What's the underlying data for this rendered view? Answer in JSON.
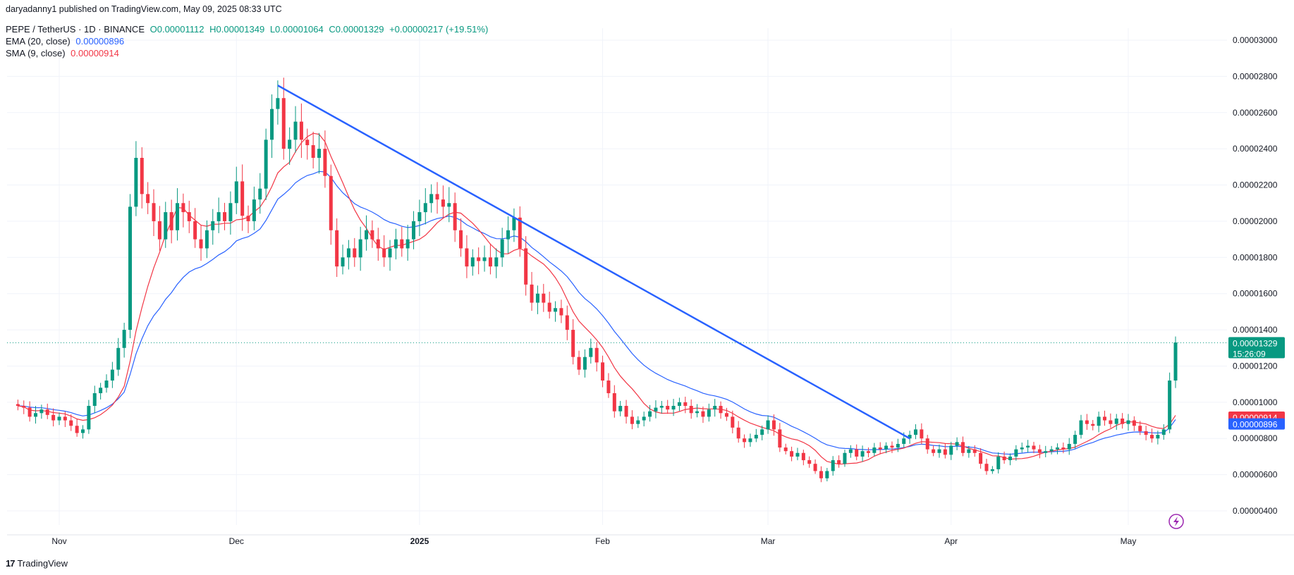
{
  "header": {
    "published": "daryadanny1 published on TradingView.com, May 09, 2025 08:33 UTC",
    "symbol": "PEPE / TetherUS · 1D · BINANCE",
    "open": "O0.00001112",
    "high": "H0.00001349",
    "low": "L0.00001064",
    "close": "C0.00001329",
    "change": "+0.00000217 (+19.51%)",
    "ema_label": "EMA (20, close)",
    "ema_value": "0.00000896",
    "sma_label": "SMA (9, close)",
    "sma_value": "0.00000914"
  },
  "footer": {
    "logo_text": "TradingView"
  },
  "price_badge": {
    "value": "0.00001329",
    "countdown": "15:26:09",
    "color": "#089981"
  },
  "sma_badge": {
    "value": "0.00000914",
    "color": "#f23645"
  },
  "ema_badge": {
    "value": "0.00000896",
    "color": "#2962ff"
  },
  "colors": {
    "up": "#089981",
    "down": "#f23645",
    "ema": "#2962ff",
    "sma": "#f23645",
    "trendline": "#2962ff",
    "grid": "#f0f3fa"
  },
  "chart_data": {
    "type": "candlestick",
    "y_axis_ticks": [
      "0.00000400",
      "0.00000600",
      "0.00000800",
      "0.00001000",
      "0.00001200",
      "0.00001400",
      "0.00001600",
      "0.00001800",
      "0.00002000",
      "0.00002200",
      "0.00002400",
      "0.00002600",
      "0.00002800",
      "0.00003000"
    ],
    "x_axis_ticks": [
      "Nov",
      "Dec",
      "2025",
      "Feb",
      "Mar",
      "Apr",
      "May"
    ],
    "ylim": [
      3.3e-06,
      3.1e-06
    ],
    "grid": true,
    "trendline": {
      "from": {
        "date": "2024-12-08",
        "price": 2.75e-05
      },
      "to": {
        "date": "2025-03-25",
        "price": 8e-06
      }
    },
    "last_price": 1.329e-05,
    "closes_approx": [
      [
        "2024-10-25",
        9.8e-06
      ],
      [
        "2024-10-26",
        9.7e-06
      ],
      [
        "2024-10-27",
        9.2e-06
      ],
      [
        "2024-10-28",
        9.4e-06
      ],
      [
        "2024-10-29",
        9.6e-06
      ],
      [
        "2024-10-30",
        9.3e-06
      ],
      [
        "2024-10-31",
        9e-06
      ],
      [
        "2024-11-01",
        9.2e-06
      ],
      [
        "2024-11-02",
        9e-06
      ],
      [
        "2024-11-03",
        8.7e-06
      ],
      [
        "2024-11-04",
        8.3e-06
      ],
      [
        "2024-11-05",
        8.5e-06
      ],
      [
        "2024-11-06",
        9.8e-06
      ],
      [
        "2024-11-07",
        1.05e-05
      ],
      [
        "2024-11-08",
        1.08e-05
      ],
      [
        "2024-11-09",
        1.12e-05
      ],
      [
        "2024-11-10",
        1.18e-05
      ],
      [
        "2024-11-11",
        1.3e-05
      ],
      [
        "2024-11-12",
        1.4e-05
      ],
      [
        "2024-11-13",
        2.08e-05
      ],
      [
        "2024-11-14",
        2.35e-05
      ],
      [
        "2024-11-15",
        2.15e-05
      ],
      [
        "2024-11-16",
        2.1e-05
      ],
      [
        "2024-11-17",
        2e-05
      ],
      [
        "2024-11-18",
        1.9e-05
      ],
      [
        "2024-11-19",
        2.05e-05
      ],
      [
        "2024-11-20",
        1.95e-05
      ],
      [
        "2024-11-21",
        2.1e-05
      ],
      [
        "2024-11-22",
        2.05e-05
      ],
      [
        "2024-11-23",
        2e-05
      ],
      [
        "2024-11-24",
        1.9e-05
      ],
      [
        "2024-11-25",
        1.85e-05
      ],
      [
        "2024-11-26",
        1.95e-05
      ],
      [
        "2024-11-27",
        2e-05
      ],
      [
        "2024-11-28",
        2.05e-05
      ],
      [
        "2024-11-29",
        2e-05
      ],
      [
        "2024-11-30",
        2.1e-05
      ],
      [
        "2024-12-01",
        2.22e-05
      ],
      [
        "2024-12-02",
        2.03e-05
      ],
      [
        "2024-12-03",
        2e-05
      ],
      [
        "2024-12-04",
        2.12e-05
      ],
      [
        "2024-12-05",
        2.18e-05
      ],
      [
        "2024-12-06",
        2.45e-05
      ],
      [
        "2024-12-07",
        2.62e-05
      ],
      [
        "2024-12-08",
        2.68e-05
      ],
      [
        "2024-12-09",
        2.4e-05
      ],
      [
        "2024-12-10",
        2.45e-05
      ],
      [
        "2024-12-11",
        2.55e-05
      ],
      [
        "2024-12-12",
        2.45e-05
      ],
      [
        "2024-12-13",
        2.42e-05
      ],
      [
        "2024-12-14",
        2.35e-05
      ],
      [
        "2024-12-15",
        2.4e-05
      ],
      [
        "2024-12-16",
        2.25e-05
      ],
      [
        "2024-12-17",
        1.95e-05
      ],
      [
        "2024-12-18",
        1.75e-05
      ],
      [
        "2024-12-19",
        1.8e-05
      ],
      [
        "2024-12-20",
        1.85e-05
      ],
      [
        "2024-12-21",
        1.8e-05
      ],
      [
        "2024-12-22",
        1.9e-05
      ],
      [
        "2024-12-23",
        1.95e-05
      ],
      [
        "2024-12-24",
        1.9e-05
      ],
      [
        "2024-12-25",
        1.85e-05
      ],
      [
        "2024-12-26",
        1.8e-05
      ],
      [
        "2024-12-27",
        1.85e-05
      ],
      [
        "2024-12-28",
        1.9e-05
      ],
      [
        "2024-12-29",
        1.85e-05
      ],
      [
        "2024-12-30",
        1.9e-05
      ],
      [
        "2024-12-31",
        2e-05
      ],
      [
        "2025-01-01",
        2.05e-05
      ],
      [
        "2025-01-02",
        2.1e-05
      ],
      [
        "2025-01-03",
        2.15e-05
      ],
      [
        "2025-01-04",
        2.12e-05
      ],
      [
        "2025-01-05",
        2.08e-05
      ],
      [
        "2025-01-06",
        2.1e-05
      ],
      [
        "2025-01-07",
        1.95e-05
      ],
      [
        "2025-01-08",
        1.85e-05
      ],
      [
        "2025-01-09",
        1.75e-05
      ],
      [
        "2025-01-10",
        1.8e-05
      ],
      [
        "2025-01-11",
        1.78e-05
      ],
      [
        "2025-01-12",
        1.8e-05
      ],
      [
        "2025-01-13",
        1.75e-05
      ],
      [
        "2025-01-14",
        1.8e-05
      ],
      [
        "2025-01-15",
        1.9e-05
      ],
      [
        "2025-01-16",
        1.95e-05
      ],
      [
        "2025-01-17",
        2.02e-05
      ],
      [
        "2025-01-18",
        1.85e-05
      ],
      [
        "2025-01-19",
        1.65e-05
      ],
      [
        "2025-01-20",
        1.55e-05
      ],
      [
        "2025-01-21",
        1.6e-05
      ],
      [
        "2025-01-22",
        1.55e-05
      ],
      [
        "2025-01-23",
        1.5e-05
      ],
      [
        "2025-01-24",
        1.52e-05
      ],
      [
        "2025-01-25",
        1.48e-05
      ],
      [
        "2025-01-26",
        1.4e-05
      ],
      [
        "2025-01-27",
        1.25e-05
      ],
      [
        "2025-01-28",
        1.18e-05
      ],
      [
        "2025-01-29",
        1.25e-05
      ],
      [
        "2025-01-30",
        1.3e-05
      ],
      [
        "2025-01-31",
        1.22e-05
      ],
      [
        "2025-02-01",
        1.12e-05
      ],
      [
        "2025-02-02",
        1.05e-05
      ],
      [
        "2025-02-03",
        9.5e-06
      ],
      [
        "2025-02-04",
        9.8e-06
      ],
      [
        "2025-02-05",
        9.2e-06
      ],
      [
        "2025-02-06",
        8.8e-06
      ],
      [
        "2025-02-07",
        9e-06
      ],
      [
        "2025-02-08",
        9.2e-06
      ],
      [
        "2025-02-09",
        9.5e-06
      ],
      [
        "2025-02-10",
        9.7e-06
      ],
      [
        "2025-02-11",
        9.8e-06
      ],
      [
        "2025-02-12",
        9.6e-06
      ],
      [
        "2025-02-13",
        9.8e-06
      ],
      [
        "2025-02-14",
        1e-05
      ],
      [
        "2025-02-15",
        9.8e-06
      ],
      [
        "2025-02-16",
        9.4e-06
      ],
      [
        "2025-02-17",
        9.5e-06
      ],
      [
        "2025-02-18",
        9.2e-06
      ],
      [
        "2025-02-19",
        9.6e-06
      ],
      [
        "2025-02-20",
        9.8e-06
      ],
      [
        "2025-02-21",
        9.4e-06
      ],
      [
        "2025-02-22",
        9.2e-06
      ],
      [
        "2025-02-23",
        8.6e-06
      ],
      [
        "2025-02-24",
        8e-06
      ],
      [
        "2025-02-25",
        7.8e-06
      ],
      [
        "2025-02-26",
        8e-06
      ],
      [
        "2025-02-27",
        8.2e-06
      ],
      [
        "2025-02-28",
        8.5e-06
      ],
      [
        "2025-03-01",
        9e-06
      ],
      [
        "2025-03-02",
        8.5e-06
      ],
      [
        "2025-03-03",
        7.5e-06
      ],
      [
        "2025-03-04",
        7.3e-06
      ],
      [
        "2025-03-05",
        7e-06
      ],
      [
        "2025-03-06",
        7.2e-06
      ],
      [
        "2025-03-07",
        6.8e-06
      ],
      [
        "2025-03-08",
        6.6e-06
      ],
      [
        "2025-03-09",
        6.2e-06
      ],
      [
        "2025-03-10",
        5.8e-06
      ],
      [
        "2025-03-11",
        6.2e-06
      ],
      [
        "2025-03-12",
        6.8e-06
      ],
      [
        "2025-03-13",
        6.6e-06
      ],
      [
        "2025-03-14",
        7.2e-06
      ],
      [
        "2025-03-15",
        7.4e-06
      ],
      [
        "2025-03-16",
        7e-06
      ],
      [
        "2025-03-17",
        7.3e-06
      ],
      [
        "2025-03-18",
        7.2e-06
      ],
      [
        "2025-03-19",
        7.5e-06
      ],
      [
        "2025-03-20",
        7.4e-06
      ],
      [
        "2025-03-21",
        7.6e-06
      ],
      [
        "2025-03-22",
        7.5e-06
      ],
      [
        "2025-03-23",
        7.7e-06
      ],
      [
        "2025-03-24",
        8e-06
      ],
      [
        "2025-03-25",
        8.2e-06
      ],
      [
        "2025-03-26",
        8.5e-06
      ],
      [
        "2025-03-27",
        8e-06
      ],
      [
        "2025-03-28",
        7.4e-06
      ],
      [
        "2025-03-29",
        7.2e-06
      ],
      [
        "2025-03-30",
        7.4e-06
      ],
      [
        "2025-03-31",
        7.1e-06
      ],
      [
        "2025-04-01",
        7.6e-06
      ],
      [
        "2025-04-02",
        7.8e-06
      ],
      [
        "2025-04-03",
        7.2e-06
      ],
      [
        "2025-04-04",
        7.4e-06
      ],
      [
        "2025-04-05",
        7.2e-06
      ],
      [
        "2025-04-06",
        6.6e-06
      ],
      [
        "2025-04-07",
        6.2e-06
      ],
      [
        "2025-04-08",
        6.3e-06
      ],
      [
        "2025-04-09",
        7e-06
      ],
      [
        "2025-04-10",
        6.8e-06
      ],
      [
        "2025-04-11",
        7e-06
      ],
      [
        "2025-04-12",
        7.4e-06
      ],
      [
        "2025-04-13",
        7.5e-06
      ],
      [
        "2025-04-14",
        7.6e-06
      ],
      [
        "2025-04-15",
        7.4e-06
      ],
      [
        "2025-04-16",
        7.2e-06
      ],
      [
        "2025-04-17",
        7.3e-06
      ],
      [
        "2025-04-18",
        7.4e-06
      ],
      [
        "2025-04-19",
        7.5e-06
      ],
      [
        "2025-04-20",
        7.4e-06
      ],
      [
        "2025-04-21",
        7.7e-06
      ],
      [
        "2025-04-22",
        8.2e-06
      ],
      [
        "2025-04-23",
        9e-06
      ],
      [
        "2025-04-24",
        8.8e-06
      ],
      [
        "2025-04-25",
        8.7e-06
      ],
      [
        "2025-04-26",
        9.2e-06
      ],
      [
        "2025-04-27",
        9e-06
      ],
      [
        "2025-04-28",
        8.8e-06
      ],
      [
        "2025-04-29",
        9.1e-06
      ],
      [
        "2025-04-30",
        8.8e-06
      ],
      [
        "2025-05-01",
        9e-06
      ],
      [
        "2025-05-02",
        8.7e-06
      ],
      [
        "2025-05-03",
        8.4e-06
      ],
      [
        "2025-05-04",
        8.2e-06
      ],
      [
        "2025-05-05",
        8e-06
      ],
      [
        "2025-05-06",
        8.2e-06
      ],
      [
        "2025-05-07",
        8.5e-06
      ],
      [
        "2025-05-08",
        1.12e-05
      ],
      [
        "2025-05-09",
        1.33e-05
      ]
    ]
  }
}
